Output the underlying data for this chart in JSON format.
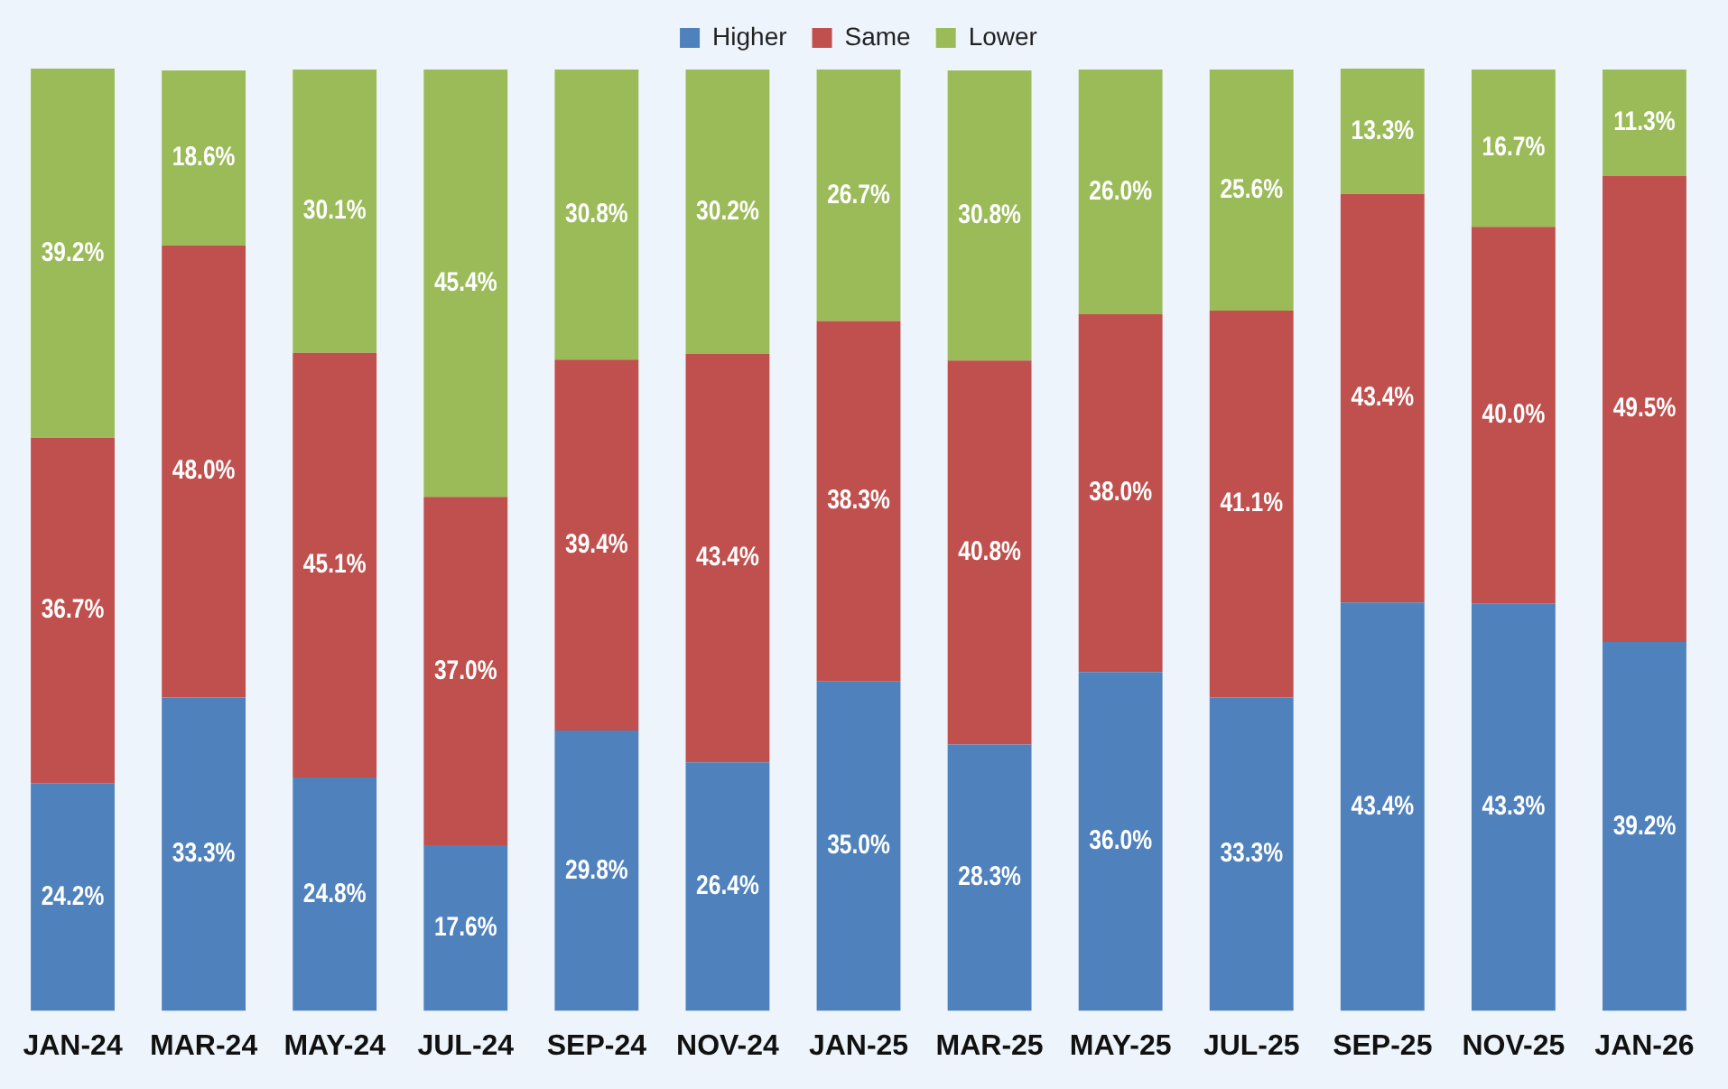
{
  "chart_data": {
    "type": "bar",
    "stacked": true,
    "legend": "top",
    "tick_labels": "x",
    "grid": false,
    "categories": [
      "JAN-24",
      "MAR-24",
      "MAY-24",
      "JUL-24",
      "SEP-24",
      "NOV-24",
      "JAN-25",
      "MAR-25",
      "MAY-25",
      "JUL-25",
      "SEP-25",
      "NOV-25",
      "JAN-26"
    ],
    "series": [
      {
        "name": "Higher",
        "color": "#4f81bd",
        "values": [
          24.2,
          33.3,
          24.8,
          17.6,
          29.8,
          26.4,
          35.0,
          28.3,
          36.0,
          33.3,
          43.4,
          43.3,
          39.2
        ],
        "value_labels": [
          "24.2%",
          "33.3%",
          "24.8%",
          "17.6%",
          "29.8%",
          "26.4%",
          "35.0%",
          "28.3%",
          "36.0%",
          "33.3%",
          "43.4%",
          "43.3%",
          "39.2%"
        ]
      },
      {
        "name": "Same",
        "color": "#c0504d",
        "values": [
          36.7,
          48.0,
          45.1,
          37.0,
          39.4,
          43.4,
          38.3,
          40.8,
          38.0,
          41.1,
          43.4,
          40.0,
          49.5
        ],
        "value_labels": [
          "36.7%",
          "48.0%",
          "45.1%",
          "37.0%",
          "39.4%",
          "43.4%",
          "38.3%",
          "40.8%",
          "38.0%",
          "41.1%",
          "43.4%",
          "40.0%",
          "49.5%"
        ]
      },
      {
        "name": "Lower",
        "color": "#9bbb59",
        "values": [
          39.2,
          18.6,
          30.1,
          45.4,
          30.8,
          30.2,
          26.7,
          30.8,
          26.0,
          25.6,
          13.3,
          16.7,
          11.3
        ],
        "value_labels": [
          "39.2%",
          "18.6%",
          "30.1%",
          "45.4%",
          "30.8%",
          "30.2%",
          "26.7%",
          "30.8%",
          "26.0%",
          "25.6%",
          "13.3%",
          "16.7%",
          "11.3%"
        ]
      }
    ]
  }
}
